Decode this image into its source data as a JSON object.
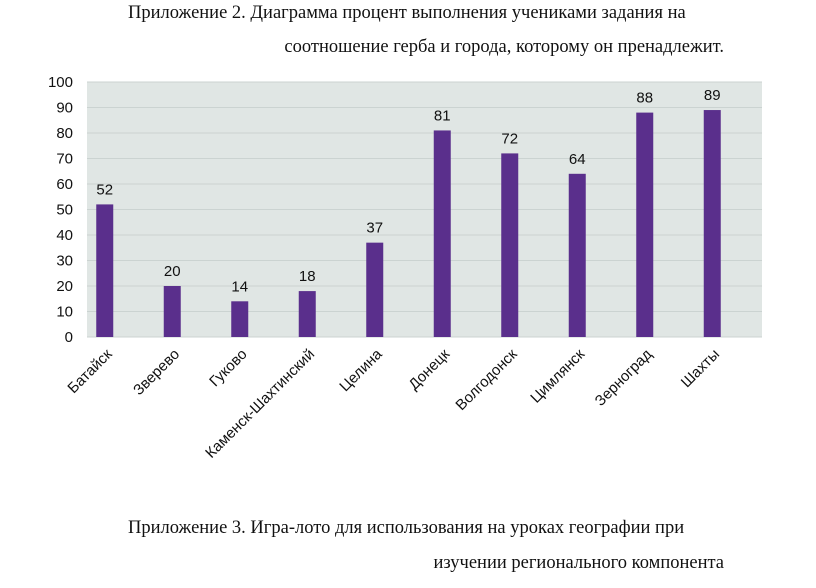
{
  "captions": {
    "appendix2_line1": "Приложение 2. Диаграмма процент выполнения учениками задания на",
    "appendix2_line2": "соотношение герба и города, которому он пренадлежит.",
    "appendix3_line1": "Приложение 3. Игра-лото для использования на уроках географии при",
    "appendix3_line2": "изучении регионального компонента"
  },
  "colors": {
    "bar": "#5A2F8C",
    "plot_bg": "#E0E6E4",
    "grid": "#CBD3D1"
  },
  "chart_data": {
    "type": "bar",
    "title": "",
    "xlabel": "",
    "ylabel": "",
    "categories": [
      "Батайск",
      "Зверево",
      "Гуково",
      "Каменск-Шахтинский",
      "Целина",
      "Донецк",
      "Волгодонск",
      "Цимлянск",
      "Зерноград",
      "Шахты"
    ],
    "values": [
      52,
      20,
      14,
      18,
      37,
      81,
      72,
      64,
      88,
      89
    ],
    "ylim": [
      0,
      100
    ],
    "yticks": [
      "0",
      "10",
      "20",
      "30",
      "40",
      "50",
      "60",
      "70",
      "80",
      "90",
      "100"
    ],
    "grid": true,
    "legend": "none",
    "data_labels": true
  }
}
